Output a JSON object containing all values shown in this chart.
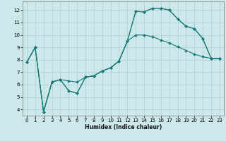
{
  "xlabel": "Humidex (Indice chaleur)",
  "background_color": "#cce8ea",
  "grid_color": "#aacccc",
  "line_color": "#1a7a7a",
  "xlim": [
    -0.5,
    23.5
  ],
  "ylim": [
    3.5,
    12.7
  ],
  "yticks": [
    4,
    5,
    6,
    7,
    8,
    9,
    10,
    11,
    12
  ],
  "xticks": [
    0,
    1,
    2,
    3,
    4,
    5,
    6,
    7,
    8,
    9,
    10,
    11,
    12,
    13,
    14,
    15,
    16,
    17,
    18,
    19,
    20,
    21,
    22,
    23
  ],
  "line1_x": [
    0,
    1,
    2,
    3,
    4,
    5,
    6,
    7,
    8,
    9,
    10,
    11,
    12,
    13,
    14,
    15,
    16,
    17,
    18,
    19,
    20,
    21,
    22,
    23
  ],
  "line1_y": [
    7.8,
    9.0,
    3.8,
    6.2,
    6.4,
    6.3,
    6.2,
    6.6,
    6.7,
    7.1,
    7.35,
    7.9,
    9.5,
    11.9,
    11.85,
    12.15,
    12.15,
    12.0,
    11.3,
    10.7,
    10.5,
    9.7,
    8.1,
    8.1
  ],
  "line2_x": [
    0,
    1,
    2,
    3,
    4,
    5,
    6,
    7,
    8,
    9,
    10,
    11,
    12,
    13,
    14,
    15,
    16,
    17,
    18,
    19,
    20,
    21,
    22,
    23
  ],
  "line2_y": [
    7.8,
    9.0,
    3.8,
    6.2,
    6.4,
    5.5,
    5.3,
    6.6,
    6.7,
    7.1,
    7.35,
    7.9,
    9.5,
    10.0,
    10.0,
    9.85,
    9.6,
    9.35,
    9.05,
    8.75,
    8.45,
    8.25,
    8.1,
    8.1
  ],
  "line3_x": [
    0,
    1,
    2,
    3,
    4,
    5,
    6,
    7,
    8,
    9,
    10,
    11,
    12,
    13,
    14,
    15,
    16,
    17,
    18,
    19,
    20,
    21,
    22,
    23
  ],
  "line3_y": [
    7.8,
    9.0,
    3.8,
    6.2,
    6.4,
    5.5,
    5.3,
    6.6,
    6.7,
    7.1,
    7.35,
    7.9,
    9.5,
    11.9,
    11.85,
    12.15,
    12.15,
    12.0,
    11.3,
    10.7,
    10.5,
    9.7,
    8.1,
    8.1
  ],
  "xlabel_fontsize": 5.5,
  "tick_fontsize": 5.0
}
